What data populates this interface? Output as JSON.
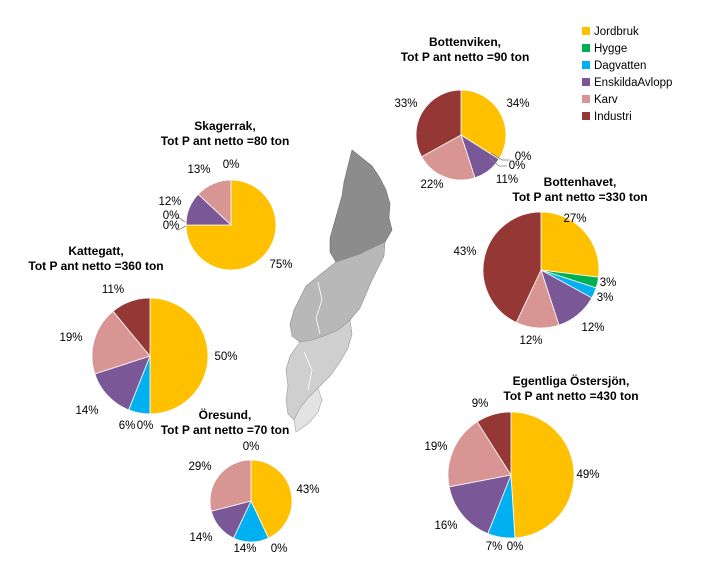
{
  "chart_data": {
    "type": "pie",
    "legend": {
      "placement": "top-right",
      "entries": [
        {
          "name": "Jordbruk",
          "color": "#FFC000"
        },
        {
          "name": "Hygge",
          "color": "#00B050"
        },
        {
          "name": "Dagvatten",
          "color": "#00B0F0"
        },
        {
          "name": "EnskildaAvlopp",
          "color": "#7A5796"
        },
        {
          "name": "Karv",
          "color": "#D99594"
        },
        {
          "name": "Industri",
          "color": "#953735"
        }
      ]
    },
    "pies": [
      {
        "id": "bottenviken",
        "title": [
          "Bottenviken,",
          "Tot P ant netto =90 ton"
        ],
        "values": [
          34,
          0,
          0,
          11,
          22,
          33
        ],
        "labels": [
          "34%",
          "0%",
          "0%",
          "11%",
          "22%",
          "33%"
        ]
      },
      {
        "id": "skagerrak",
        "title": [
          "Skagerrak,",
          "Tot P ant netto =80 ton"
        ],
        "values": [
          75,
          0,
          0,
          12,
          13,
          0
        ],
        "labels": [
          "75%",
          "0%",
          "0%",
          "12%",
          "13%",
          "0%"
        ]
      },
      {
        "id": "bottenhavet",
        "title": [
          "Bottenhavet,",
          "Tot P ant netto =330 ton"
        ],
        "values": [
          27,
          3,
          3,
          12,
          12,
          43
        ],
        "labels": [
          "27%",
          "3%",
          "3%",
          "12%",
          "12%",
          "43%"
        ]
      },
      {
        "id": "kattegatt",
        "title": [
          "Kattegatt,",
          "Tot P ant netto =360 ton"
        ],
        "values": [
          50,
          0,
          6,
          14,
          19,
          11
        ],
        "labels": [
          "50%",
          "0%",
          "6%",
          "14%",
          "19%",
          "11%"
        ]
      },
      {
        "id": "oresund",
        "title": [
          "Öresund,",
          "Tot P ant netto =70 ton"
        ],
        "values": [
          43,
          0,
          14,
          14,
          29,
          0
        ],
        "labels": [
          "43%",
          "0%",
          "14%",
          "14%",
          "29%",
          "0%"
        ]
      },
      {
        "id": "egentliga-ostersjon",
        "title": [
          "Egentliga Östersjön,",
          "Tot P ant netto =430 ton"
        ],
        "values": [
          49,
          0,
          7,
          16,
          19,
          9
        ],
        "labels": [
          "49%",
          "0%",
          "7%",
          "16%",
          "19%",
          "9%"
        ]
      }
    ]
  }
}
